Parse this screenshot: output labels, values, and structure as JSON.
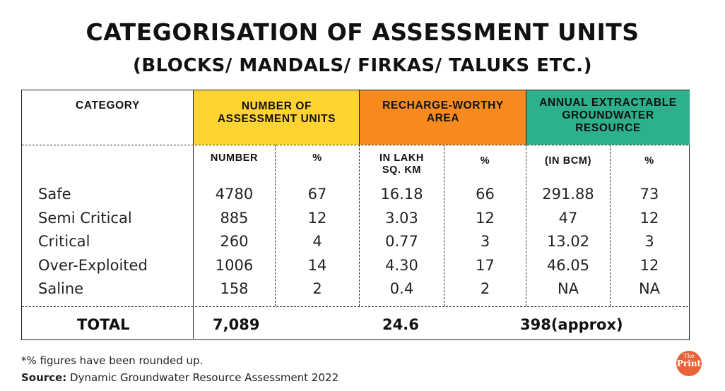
{
  "title": "CATEGORISATION OF ASSESSMENT UNITS",
  "subtitle": "(BLOCKS/ MANDALS/ FIRKAS/ TALUKS ETC.)",
  "headers": {
    "category": "CATEGORY",
    "number_of_units": "NUMBER OF ASSESSMENT UNITS",
    "recharge_area": "RECHARGE-WORTHY AREA",
    "groundwater": "ANNUAL EXTRACTABLE GROUNDWATER RESOURCE"
  },
  "header_colors": {
    "number_of_units": "#ffd330",
    "recharge_area": "#f68a1f",
    "groundwater": "#2db08c"
  },
  "subheaders": {
    "number": "NUMBER",
    "number_pct": "%",
    "area": "IN LAKH SQ. KM",
    "area_pct": "%",
    "gw": "(IN BCM)",
    "gw_pct": "%"
  },
  "rows": [
    {
      "category": "Safe",
      "number": "4780",
      "number_pct": "67",
      "area": "16.18",
      "area_pct": "66",
      "gw": "291.88",
      "gw_pct": "73"
    },
    {
      "category": "Semi Critical",
      "number": "885",
      "number_pct": "12",
      "area": "3.03",
      "area_pct": "12",
      "gw": "47",
      "gw_pct": "12"
    },
    {
      "category": "Critical",
      "number": "260",
      "number_pct": "4",
      "area": "0.77",
      "area_pct": "3",
      "gw": "13.02",
      "gw_pct": "3"
    },
    {
      "category": "Over-Exploited",
      "number": "1006",
      "number_pct": "14",
      "area": "4.30",
      "area_pct": "17",
      "gw": "46.05",
      "gw_pct": "12"
    },
    {
      "category": "Saline",
      "number": "158",
      "number_pct": "2",
      "area": "0.4",
      "area_pct": "2",
      "gw": "NA",
      "gw_pct": "NA"
    }
  ],
  "total": {
    "label": "TOTAL",
    "number": "7,089",
    "area": "24.6",
    "gw": "398(approx)"
  },
  "footnote": "*% figures have been rounded up.",
  "source_label": "Source:",
  "source_text": "Dynamic Groundwater Resource Assessment 2022",
  "logo": {
    "line1": "The",
    "line2": "Print"
  }
}
